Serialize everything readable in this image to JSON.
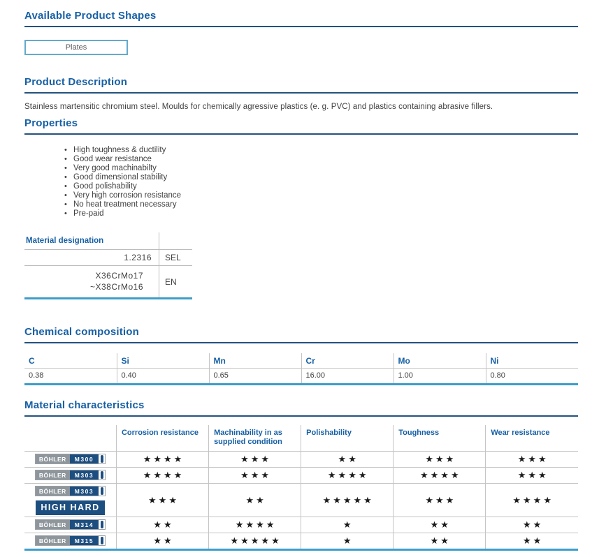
{
  "colors": {
    "heading_blue": "#1760a5",
    "rule_navy": "#24527e",
    "table_accent_blue": "#3d9dca",
    "badge_navy": "#1d4e80",
    "badge_grey": "#8e969c",
    "shape_border_blue": "#64aacd",
    "star_black": "#1a1a1a"
  },
  "available_product_shapes": {
    "title": "Available Product Shapes",
    "shapes": [
      "Plates"
    ]
  },
  "product_description": {
    "title": "Product Description",
    "text": "Stainless martensitic chromium steel. Moulds for chemically agressive plastics (e. g. PVC) and plastics containing abrasive fillers."
  },
  "properties": {
    "title": "Properties",
    "items": [
      "High toughness & ductility",
      "Good wear resistance",
      "Very good machinabilty",
      "Good dimensional stability",
      "Good polishability",
      "Very high corrosion resistance",
      "No heat treatment necessary",
      "Pre-paid"
    ]
  },
  "material_designation": {
    "title": "Material designation",
    "rows": [
      {
        "designation_lines": [
          "1.2316"
        ],
        "standard": "SEL"
      },
      {
        "designation_lines": [
          "X36CrMo17",
          "~X38CrMo16"
        ],
        "standard": "EN"
      }
    ]
  },
  "chemical_composition": {
    "title": "Chemical composition",
    "columns": [
      "C",
      "Si",
      "Mn",
      "Cr",
      "Mo",
      "Ni"
    ],
    "values": [
      "0.38",
      "0.40",
      "0.65",
      "16.00",
      "1.00",
      "0.80"
    ]
  },
  "material_characteristics": {
    "title": "Material characteristics",
    "columns": [
      "Corrosion resistance",
      "Machinability in as supplied condition",
      "Polishability",
      "Toughness",
      "Wear resistance"
    ],
    "rows": [
      {
        "brand": "BÖHLER",
        "grade": "M300",
        "high_hard_label": "",
        "ratings": [
          4,
          3,
          2,
          3,
          3
        ],
        "stars": [
          "★★★★",
          "★★★",
          "★★",
          "★★★",
          "★★★"
        ]
      },
      {
        "brand": "BÖHLER",
        "grade": "M303",
        "high_hard_label": "",
        "ratings": [
          4,
          3,
          4,
          4,
          3
        ],
        "stars": [
          "★★★★",
          "★★★",
          "★★★★",
          "★★★★",
          "★★★"
        ]
      },
      {
        "brand": "BÖHLER",
        "grade": "M303",
        "high_hard_label": "HIGH HARD",
        "ratings": [
          3,
          2,
          5,
          3,
          4
        ],
        "stars": [
          "★★★",
          "★★",
          "★★★★★",
          "★★★",
          "★★★★"
        ]
      },
      {
        "brand": "BÖHLER",
        "grade": "M314",
        "high_hard_label": "",
        "ratings": [
          2,
          4,
          1,
          2,
          2
        ],
        "stars": [
          "★★",
          "★★★★",
          "★",
          "★★",
          "★★"
        ]
      },
      {
        "brand": "BÖHLER",
        "grade": "M315",
        "high_hard_label": "",
        "ratings": [
          2,
          5,
          1,
          2,
          2
        ],
        "stars": [
          "★★",
          "★★★★★",
          "★",
          "★★",
          "★★"
        ]
      }
    ]
  }
}
